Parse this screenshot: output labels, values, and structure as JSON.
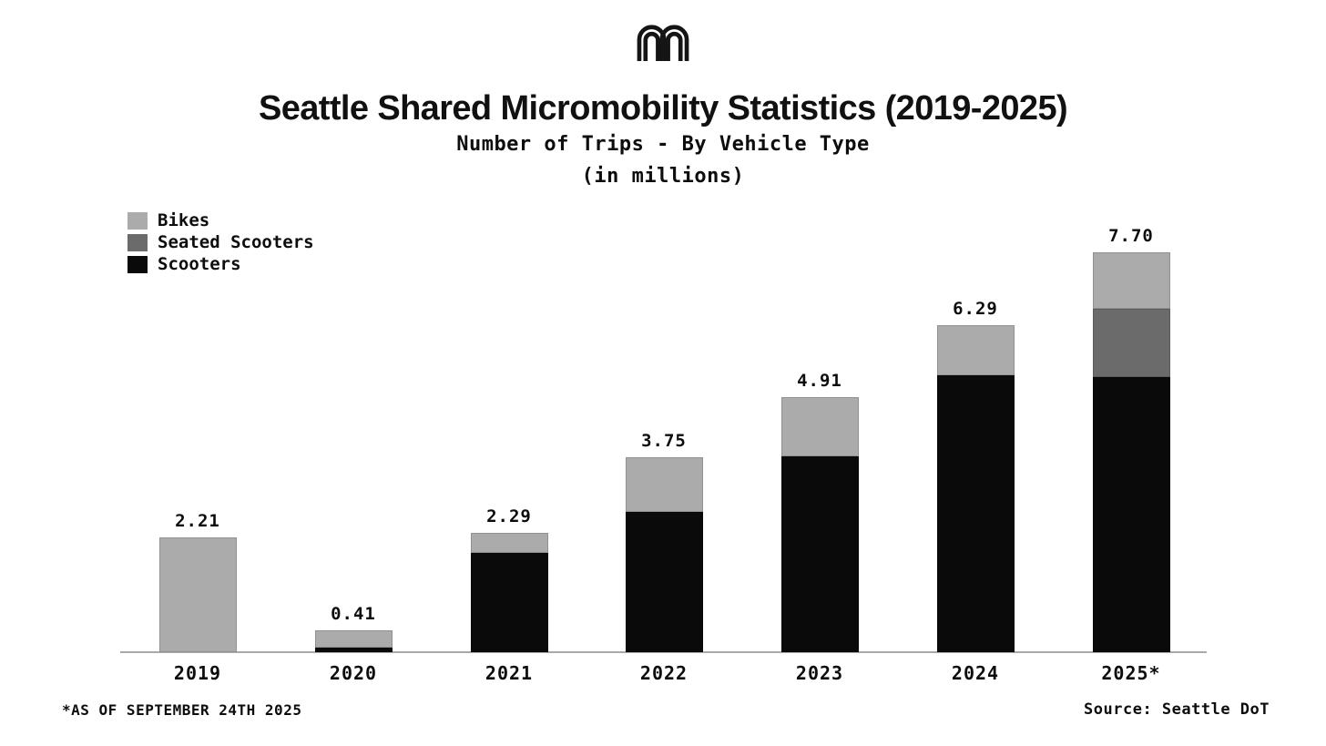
{
  "header": {
    "title": "Seattle Shared Micromobility Statistics (2019-2025)",
    "subtitle_line1": "Number of Trips - By Vehicle Type",
    "subtitle_line2": "(in millions)"
  },
  "legend": {
    "items": [
      {
        "label": "Bikes",
        "color": "#ababab"
      },
      {
        "label": "Seated Scooters",
        "color": "#6b6b6b"
      },
      {
        "label": "Scooters",
        "color": "#0a0a0a"
      }
    ]
  },
  "chart_data": {
    "type": "bar",
    "stacked": true,
    "title": "Number of Trips - By Vehicle Type (in millions)",
    "categories": [
      "2019",
      "2020",
      "2021",
      "2022",
      "2023",
      "2024",
      "2025*"
    ],
    "series": [
      {
        "name": "Scooters",
        "color": "#0a0a0a",
        "values": [
          0,
          0.08,
          1.91,
          2.7,
          3.77,
          5.33,
          5.3
        ]
      },
      {
        "name": "Seated Scooters",
        "color": "#6b6b6b",
        "values": [
          0,
          0,
          0,
          0,
          0,
          0,
          1.32
        ]
      },
      {
        "name": "Bikes",
        "color": "#ababab",
        "values": [
          2.21,
          0.33,
          0.38,
          1.05,
          1.14,
          0.96,
          1.08
        ]
      }
    ],
    "totals": [
      2.21,
      0.41,
      2.29,
      3.75,
      4.91,
      6.29,
      7.7
    ],
    "value_labels": [
      "2.21",
      "0.41",
      "2.29",
      "3.75",
      "4.91",
      "6.29",
      "7.70"
    ],
    "ylim": [
      0,
      8
    ],
    "grid": false,
    "legend_position": "top-left",
    "bar_order_bottom_to_top": [
      "Scooters",
      "Seated Scooters",
      "Bikes"
    ]
  },
  "footer": {
    "footnote": "*AS OF SEPTEMBER 24TH 2025",
    "source": "Source: Seattle DoT"
  },
  "colors": {
    "background": "#ffffff",
    "text": "#0d0d0d",
    "axis": "#a9a9a9"
  }
}
